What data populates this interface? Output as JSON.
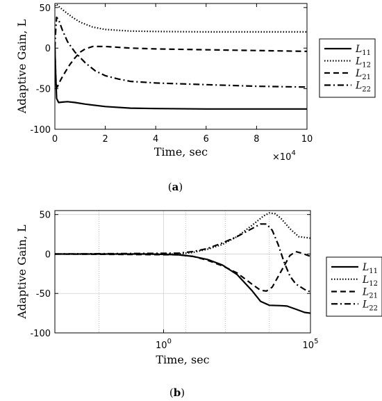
{
  "chart_data": [
    {
      "type": "line",
      "panel_label": "a",
      "xlabel": "Time, sec",
      "ylabel": "Adaptive Gain, L",
      "x_scale": "linear",
      "x_multiplier": "×10",
      "x_multiplier_exp": "4",
      "xlim": [
        0,
        100000
      ],
      "ylim": [
        -100,
        55
      ],
      "xticks": [
        0,
        20000,
        40000,
        60000,
        80000,
        100000
      ],
      "xtick_labels": [
        "0",
        "2",
        "4",
        "6",
        "8",
        "10"
      ],
      "yticks": [
        -100,
        -50,
        0,
        50
      ],
      "ytick_labels": [
        "-100",
        "-50",
        "0",
        "50"
      ],
      "grid": false,
      "legend_position": "outside-right",
      "series": [
        {
          "name": "L",
          "sub": "11",
          "style": "solid",
          "x": [
            0,
            300,
            700,
            1500,
            3000,
            5000,
            8000,
            12000,
            20000,
            30000,
            40000,
            60000,
            80000,
            100000
          ],
          "y": [
            0,
            -30,
            -62,
            -67,
            -66.5,
            -66,
            -67,
            -69,
            -72,
            -74,
            -74.5,
            -75,
            -75,
            -75
          ]
        },
        {
          "name": "L",
          "sub": "12",
          "style": "dotted",
          "x": [
            0,
            500,
            1000,
            2000,
            4000,
            7000,
            10000,
            15000,
            20000,
            30000,
            40000,
            60000,
            80000,
            100000
          ],
          "y": [
            52,
            54,
            53,
            50,
            45,
            38,
            32,
            26,
            23,
            21,
            20.5,
            20,
            20,
            20
          ]
        },
        {
          "name": "L",
          "sub": "21",
          "style": "dashed",
          "x": [
            0,
            200,
            500,
            1000,
            1500,
            2500,
            4000,
            6000,
            8000,
            10000,
            12000,
            15000,
            20000,
            30000,
            40000,
            60000,
            80000,
            100000
          ],
          "y": [
            0,
            -20,
            -45,
            -48,
            -44,
            -38,
            -30,
            -20,
            -12,
            -5,
            -1,
            2,
            2,
            0,
            -1,
            -2,
            -3,
            -4
          ]
        },
        {
          "name": "L",
          "sub": "22",
          "style": "dashdot",
          "x": [
            0,
            300,
            700,
            1500,
            3000,
            5000,
            8000,
            12000,
            16000,
            20000,
            25000,
            30000,
            40000,
            60000,
            80000,
            100000
          ],
          "y": [
            0,
            20,
            38,
            35,
            22,
            8,
            -5,
            -18,
            -28,
            -34,
            -38,
            -41,
            -43,
            -45,
            -47,
            -48
          ]
        }
      ]
    },
    {
      "type": "line",
      "panel_label": "b",
      "xlabel": "Time, sec",
      "ylabel": "Adaptive Gain, L",
      "x_scale": "log",
      "xlim_log10": [
        -3.7,
        5
      ],
      "ylim": [
        -100,
        55
      ],
      "xticks_log10": [
        0,
        5
      ],
      "xtick_base": "10",
      "xtick_exps": [
        "0",
        "5"
      ],
      "yticks": [
        -100,
        -50,
        0,
        50
      ],
      "ytick_labels": [
        "-100",
        "-50",
        "0",
        "50"
      ],
      "grid": true,
      "vgrid_log10": [
        -2.2,
        0.75,
        2.1,
        3.6
      ],
      "legend_position": "inside-right",
      "series": [
        {
          "name": "L",
          "sub": "11",
          "style": "solid",
          "lx": [
            -3.7,
            -0.5,
            0.5,
            1.0,
            1.5,
            2.0,
            2.5,
            3.0,
            3.3,
            3.6,
            4.0,
            4.2,
            4.5,
            4.8,
            5.0
          ],
          "y": [
            0,
            0,
            -1,
            -3,
            -7,
            -14,
            -26,
            -46,
            -60,
            -65,
            -65.5,
            -66,
            -70,
            -74,
            -75
          ]
        },
        {
          "name": "L",
          "sub": "12",
          "style": "dotted",
          "lx": [
            -3.7,
            0.5,
            1.0,
            1.5,
            2.0,
            2.5,
            3.0,
            3.4,
            3.6,
            3.8,
            4.0,
            4.3,
            4.6,
            5.0
          ],
          "y": [
            0,
            0,
            2,
            6,
            12,
            22,
            36,
            48,
            52,
            51,
            45,
            32,
            22,
            20
          ]
        },
        {
          "name": "L",
          "sub": "21",
          "style": "dashed",
          "lx": [
            -3.7,
            0.5,
            1.0,
            1.5,
            2.0,
            2.5,
            3.0,
            3.3,
            3.5,
            3.7,
            4.0,
            4.3,
            4.5,
            4.7,
            5.0
          ],
          "y": [
            0,
            -1,
            -3,
            -8,
            -15,
            -24,
            -38,
            -46,
            -47,
            -42,
            -22,
            -2,
            3,
            1,
            -3
          ]
        },
        {
          "name": "L",
          "sub": "22",
          "style": "dashdot",
          "lx": [
            -3.7,
            0.5,
            1.0,
            1.5,
            2.0,
            2.5,
            3.0,
            3.3,
            3.5,
            3.7,
            3.9,
            4.1,
            4.3,
            4.5,
            4.8,
            5.0
          ],
          "y": [
            0,
            1,
            3,
            7,
            14,
            22,
            32,
            38,
            38,
            30,
            12,
            -10,
            -28,
            -38,
            -45,
            -48
          ]
        }
      ]
    }
  ]
}
